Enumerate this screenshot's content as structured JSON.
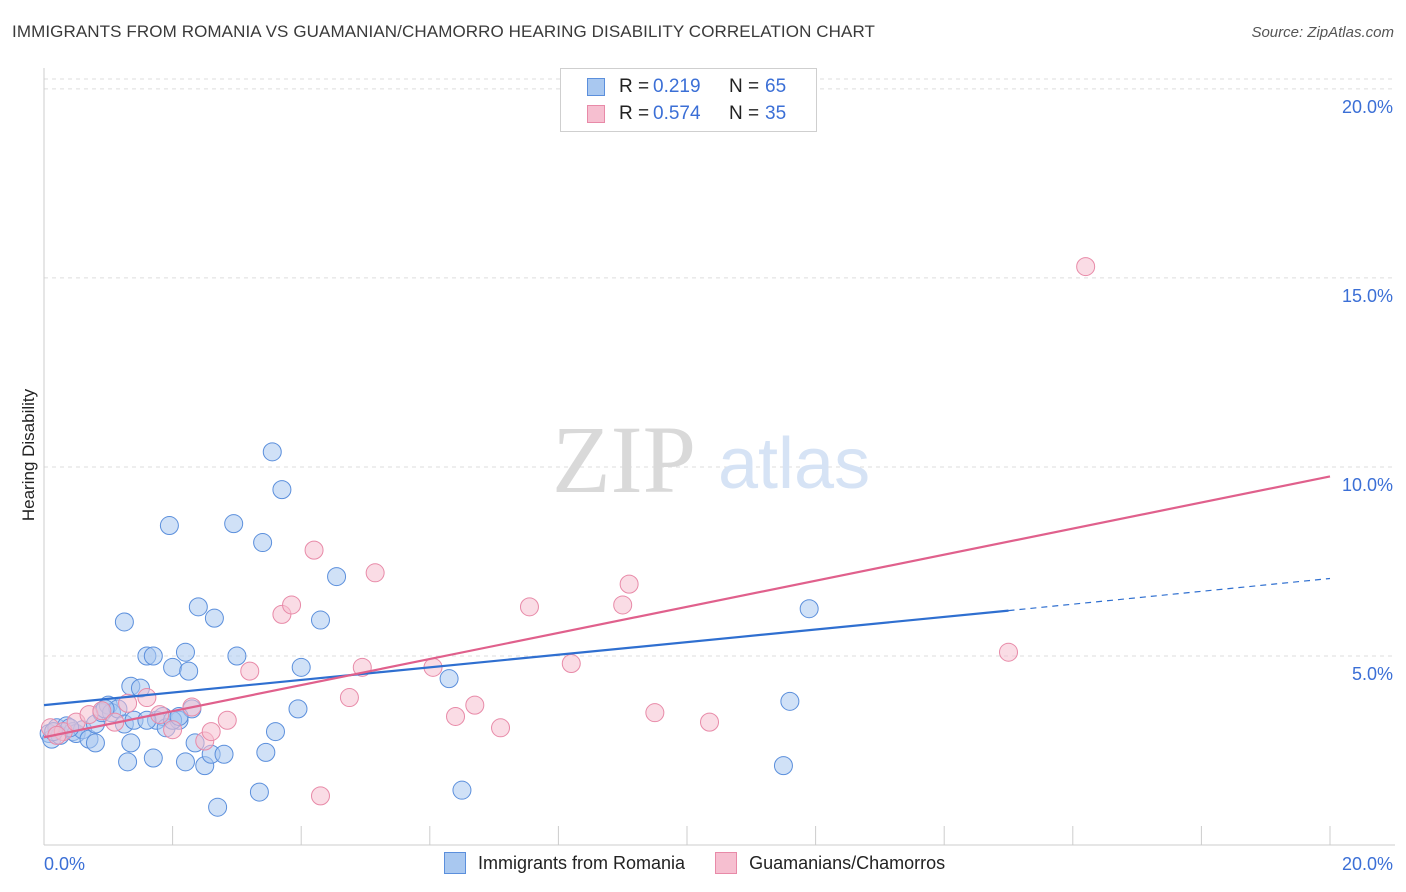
{
  "header": {
    "title": "IMMIGRANTS FROM ROMANIA VS GUAMANIAN/CHAMORRO HEARING DISABILITY CORRELATION CHART",
    "source": "Source: ZipAtlas.com"
  },
  "legend": {
    "rows": [
      {
        "r_label": "R =",
        "r_value": "0.219",
        "n_label": "N =",
        "n_value": "65"
      },
      {
        "r_label": "R =",
        "r_value": "0.574",
        "n_label": "N =",
        "n_value": "35"
      }
    ]
  },
  "watermark": {
    "zip": "ZIP",
    "atlas": "atlas"
  },
  "colors": {
    "blue_fill": "#a9c8f0",
    "blue_stroke": "#5b8fdc",
    "blue_line": "#2f6fd0",
    "pink_fill": "#f6bfd0",
    "pink_stroke": "#e88aa8",
    "pink_line": "#e0608c",
    "grid": "#dedede",
    "tick_label": "#3b6fd6"
  },
  "chart_data": {
    "type": "scatter",
    "title": "IMMIGRANTS FROM ROMANIA VS GUAMANIAN/CHAMORRO HEARING DISABILITY CORRELATION CHART",
    "xlabel": "",
    "ylabel": "Hearing Disability",
    "xlim": [
      0,
      20
    ],
    "ylim": [
      0,
      20.5
    ],
    "x_tick_labels": [
      "0.0%",
      "20.0%"
    ],
    "y_ticks": [
      5,
      10,
      15,
      20
    ],
    "y_tick_labels": [
      "5.0%",
      "10.0%",
      "15.0%",
      "20.0%"
    ],
    "grid": true,
    "legend_position": "bottom",
    "series": [
      {
        "name": "Immigrants from Romania",
        "color": "blue",
        "trend": {
          "x0": 0,
          "y0": 3.7,
          "x1": 15.0,
          "y1": 6.2,
          "dash_to_x": 20,
          "dash_to_y": 7.05
        },
        "points": [
          [
            0.08,
            2.95
          ],
          [
            0.12,
            2.8
          ],
          [
            0.2,
            3.1
          ],
          [
            0.25,
            2.9
          ],
          [
            0.35,
            3.15
          ],
          [
            0.45,
            3.0
          ],
          [
            0.5,
            2.95
          ],
          [
            0.6,
            3.05
          ],
          [
            0.7,
            2.8
          ],
          [
            0.8,
            3.2
          ],
          [
            0.9,
            3.5
          ],
          [
            1.0,
            3.7
          ],
          [
            1.05,
            3.5
          ],
          [
            1.15,
            3.6
          ],
          [
            1.25,
            3.2
          ],
          [
            1.35,
            4.2
          ],
          [
            1.4,
            3.3
          ],
          [
            1.5,
            4.15
          ],
          [
            1.6,
            5.0
          ],
          [
            1.7,
            5.0
          ],
          [
            1.75,
            3.3
          ],
          [
            1.85,
            3.4
          ],
          [
            1.9,
            3.1
          ],
          [
            2.0,
            4.7
          ],
          [
            2.1,
            3.3
          ],
          [
            2.2,
            5.1
          ],
          [
            2.25,
            4.6
          ],
          [
            2.3,
            3.6
          ],
          [
            2.4,
            6.3
          ],
          [
            2.5,
            2.1
          ],
          [
            2.6,
            2.4
          ],
          [
            2.7,
            1.0
          ],
          [
            1.3,
            2.2
          ],
          [
            1.7,
            2.3
          ],
          [
            2.2,
            2.2
          ],
          [
            2.0,
            3.3
          ],
          [
            2.35,
            2.7
          ],
          [
            1.35,
            2.7
          ],
          [
            0.8,
            2.7
          ],
          [
            1.95,
            8.45
          ],
          [
            2.95,
            8.5
          ],
          [
            3.0,
            5.0
          ],
          [
            3.35,
            1.4
          ],
          [
            3.4,
            8.0
          ],
          [
            3.6,
            3.0
          ],
          [
            3.55,
            10.4
          ],
          [
            3.7,
            9.4
          ],
          [
            4.0,
            4.7
          ],
          [
            3.95,
            3.6
          ],
          [
            4.3,
            5.95
          ],
          [
            4.55,
            7.1
          ],
          [
            6.3,
            4.4
          ],
          [
            6.5,
            1.45
          ],
          [
            11.9,
            6.25
          ],
          [
            11.6,
            3.8
          ],
          [
            11.5,
            2.1
          ],
          [
            2.1,
            3.4
          ],
          [
            1.6,
            3.3
          ],
          [
            0.95,
            3.6
          ],
          [
            0.4,
            3.1
          ],
          [
            0.15,
            3.0
          ],
          [
            2.8,
            2.4
          ],
          [
            2.65,
            6.0
          ],
          [
            1.25,
            5.9
          ],
          [
            3.45,
            2.45
          ]
        ]
      },
      {
        "name": "Guamanians/Chamorros",
        "color": "pink",
        "trend": {
          "x0": 0,
          "y0": 2.85,
          "x1": 20,
          "y1": 9.75
        },
        "points": [
          [
            0.1,
            3.1
          ],
          [
            0.3,
            3.0
          ],
          [
            0.5,
            3.25
          ],
          [
            0.7,
            3.45
          ],
          [
            0.9,
            3.55
          ],
          [
            1.1,
            3.25
          ],
          [
            1.3,
            3.75
          ],
          [
            1.6,
            3.9
          ],
          [
            1.8,
            3.45
          ],
          [
            2.0,
            3.05
          ],
          [
            2.3,
            3.65
          ],
          [
            2.5,
            2.75
          ],
          [
            2.6,
            3.0
          ],
          [
            2.85,
            3.3
          ],
          [
            3.2,
            4.6
          ],
          [
            3.7,
            6.1
          ],
          [
            3.85,
            6.35
          ],
          [
            4.2,
            7.8
          ],
          [
            4.3,
            1.3
          ],
          [
            4.75,
            3.9
          ],
          [
            4.95,
            4.7
          ],
          [
            5.15,
            7.2
          ],
          [
            6.05,
            4.7
          ],
          [
            6.4,
            3.4
          ],
          [
            6.7,
            3.7
          ],
          [
            7.1,
            3.1
          ],
          [
            7.55,
            6.3
          ],
          [
            8.2,
            4.8
          ],
          [
            9.0,
            6.35
          ],
          [
            9.1,
            6.9
          ],
          [
            9.5,
            3.5
          ],
          [
            10.35,
            3.25
          ],
          [
            15.0,
            5.1
          ],
          [
            16.2,
            15.3
          ],
          [
            0.2,
            2.9
          ]
        ]
      }
    ]
  },
  "bottom_legend": {
    "item1": "Immigrants from Romania",
    "item2": "Guamanians/Chamorros"
  }
}
